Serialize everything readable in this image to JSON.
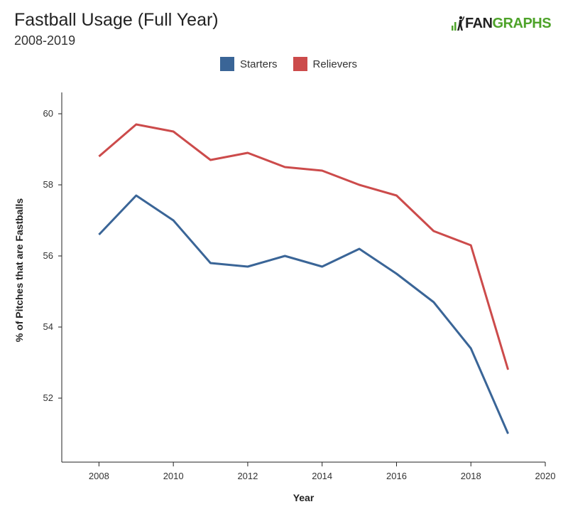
{
  "header": {
    "title": "Fastball Usage (Full Year)",
    "subtitle": "2008-2019",
    "logo_part1": "FAN",
    "logo_part2": "GRAPHS"
  },
  "colors": {
    "starters": "#3a6597",
    "relievers": "#cc4b4b",
    "brand_green": "#4ea32a"
  },
  "chart_data": {
    "type": "line",
    "xlabel": "Year",
    "ylabel": "% of Pitches that are Fastballs",
    "xlim": [
      2007,
      2020
    ],
    "ylim": [
      50.2,
      60.6
    ],
    "xticks": [
      2008,
      2010,
      2012,
      2014,
      2016,
      2018,
      2020
    ],
    "yticks": [
      52,
      54,
      56,
      58,
      60
    ],
    "grid": false,
    "legend_position": "top-center",
    "x": [
      2008,
      2009,
      2010,
      2011,
      2012,
      2013,
      2014,
      2015,
      2016,
      2017,
      2018,
      2019
    ],
    "series": [
      {
        "name": "Starters",
        "color": "#3a6597",
        "values": [
          56.6,
          57.7,
          57.0,
          55.8,
          55.7,
          56.0,
          55.7,
          56.2,
          55.5,
          54.7,
          53.4,
          51.0
        ]
      },
      {
        "name": "Relievers",
        "color": "#cc4b4b",
        "values": [
          58.8,
          59.7,
          59.5,
          58.7,
          58.9,
          58.5,
          58.4,
          58.0,
          57.7,
          56.7,
          56.3,
          52.8
        ]
      }
    ]
  }
}
